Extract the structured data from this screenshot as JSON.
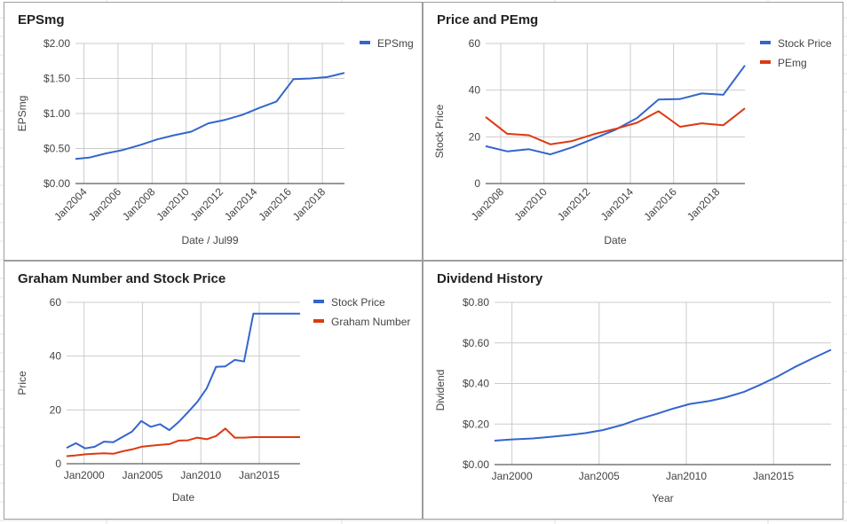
{
  "colors": {
    "blue": "#3366cc",
    "red": "#dc3912",
    "grid": "#cccccc",
    "axis": "#333333"
  },
  "chart_data": [
    {
      "type": "line",
      "title": "EPSmg",
      "xlabel": "Date / Jul99",
      "ylabel": "EPSmg",
      "ylim": [
        0,
        2
      ],
      "yticks": [
        "$0.00",
        "$0.50",
        "$1.00",
        "$1.50",
        "$2.00"
      ],
      "xlim": [
        2003.5,
        2019.3
      ],
      "xticks": [
        {
          "v": 2004,
          "t": "Jan2004"
        },
        {
          "v": 2006,
          "t": "Jan2006"
        },
        {
          "v": 2008,
          "t": "Jan2008"
        },
        {
          "v": 2010,
          "t": "Jan2010"
        },
        {
          "v": 2012,
          "t": "Jan2012"
        },
        {
          "v": 2014,
          "t": "Jan2014"
        },
        {
          "v": 2016,
          "t": "Jan2016"
        },
        {
          "v": 2018,
          "t": "Jan2018"
        }
      ],
      "legend_position": "right",
      "grid": true,
      "series": [
        {
          "name": "EPSmg",
          "color": "#3366cc",
          "x": [
            2003.5,
            2004.3,
            2005.3,
            2006.3,
            2007.3,
            2008.3,
            2009.3,
            2010.3,
            2011.3,
            2012.3,
            2013.3,
            2014.3,
            2015.3,
            2016.3,
            2017.3,
            2018.3,
            2019.3
          ],
          "y": [
            0.35,
            0.37,
            0.43,
            0.48,
            0.55,
            0.63,
            0.69,
            0.74,
            0.86,
            0.91,
            0.98,
            1.08,
            1.17,
            1.49,
            1.5,
            1.52,
            1.58
          ]
        }
      ]
    },
    {
      "type": "line",
      "title": "Price and PEmg",
      "xlabel": "Date",
      "ylabel": "Stock Price",
      "ylim": [
        0,
        60
      ],
      "yticks": [
        "0",
        "20",
        "40",
        "60"
      ],
      "xlim": [
        2007.3,
        2019.3
      ],
      "xticks": [
        {
          "v": 2008,
          "t": "Jan2008"
        },
        {
          "v": 2010,
          "t": "Jan2010"
        },
        {
          "v": 2012,
          "t": "Jan2012"
        },
        {
          "v": 2014,
          "t": "Jan2014"
        },
        {
          "v": 2016,
          "t": "Jan2016"
        },
        {
          "v": 2018,
          "t": "Jan2018"
        }
      ],
      "legend_position": "right",
      "grid": true,
      "series": [
        {
          "name": "Stock Price",
          "color": "#3366cc",
          "x": [
            2007.3,
            2008.3,
            2009.3,
            2010.3,
            2011.3,
            2012.3,
            2013.3,
            2014.3,
            2015.3,
            2016.3,
            2017.3,
            2018.3,
            2019.3
          ],
          "y": [
            16.0,
            13.8,
            14.7,
            12.5,
            15.5,
            19.2,
            23.0,
            28.0,
            36.0,
            36.2,
            38.6,
            38.0,
            50.6
          ]
        },
        {
          "name": "PEmg",
          "color": "#dc3912",
          "x": [
            2007.3,
            2008.3,
            2009.3,
            2010.3,
            2011.3,
            2012.3,
            2013.3,
            2014.3,
            2015.3,
            2016.3,
            2017.3,
            2018.3,
            2019.3
          ],
          "y": [
            28.5,
            21.3,
            20.7,
            16.8,
            18.2,
            21.1,
            23.4,
            26.0,
            31.0,
            24.3,
            25.8,
            25.0,
            32.2
          ]
        }
      ]
    },
    {
      "type": "line",
      "title": "Graham Number and Stock Price",
      "xlabel": "Date",
      "ylabel": "Price",
      "ylim": [
        0,
        60
      ],
      "yticks": [
        "0",
        "20",
        "40",
        "60"
      ],
      "xlim": [
        1998.5,
        2018.5
      ],
      "xticks": [
        {
          "v": 2000,
          "t": "Jan2000"
        },
        {
          "v": 2005,
          "t": "Jan2005"
        },
        {
          "v": 2010,
          "t": "Jan2010"
        },
        {
          "v": 2015,
          "t": "Jan2015"
        }
      ],
      "legend_position": "right",
      "grid": true,
      "series": [
        {
          "name": "Stock Price",
          "color": "#3366cc",
          "x": [
            1998.5,
            1999.3,
            2000.1,
            2000.9,
            2001.7,
            2002.5,
            2003.3,
            2004.1,
            2004.9,
            2005.7,
            2006.5,
            2007.3,
            2008.1,
            2008.9,
            2009.7,
            2010.5,
            2011.3,
            2012.1,
            2012.9,
            2013.7,
            2014.5,
            2015.3,
            2016.1,
            2016.9,
            2017.7,
            2018.5
          ],
          "y": [
            5.9,
            7.6,
            5.7,
            6.3,
            8.2,
            8.0,
            10.0,
            11.9,
            15.9,
            13.7,
            14.7,
            12.5,
            15.5,
            19.2,
            23.0,
            28.0,
            36.0,
            36.2,
            38.6,
            38.0,
            55.8,
            55.8,
            55.8,
            55.8,
            55.8,
            55.8
          ]
        },
        {
          "name": "Graham Number",
          "color": "#dc3912",
          "x": [
            1998.5,
            1999.3,
            2000.1,
            2000.9,
            2001.7,
            2002.5,
            2003.3,
            2004.1,
            2004.9,
            2005.7,
            2006.5,
            2007.3,
            2008.1,
            2008.9,
            2009.7,
            2010.5,
            2011.3,
            2012.1,
            2012.9,
            2013.7,
            2014.5,
            2015.3,
            2016.1,
            2016.9,
            2017.7,
            2018.5
          ],
          "y": [
            2.8,
            3.1,
            3.5,
            3.7,
            3.9,
            3.7,
            4.6,
            5.3,
            6.3,
            6.7,
            7.0,
            7.3,
            8.6,
            8.7,
            9.7,
            9.1,
            10.3,
            13.1,
            9.7,
            9.7,
            9.9,
            9.9,
            9.9,
            9.9,
            9.9,
            9.9
          ]
        }
      ]
    },
    {
      "type": "line",
      "title": "Dividend History",
      "xlabel": "Year",
      "ylabel": "Dividend",
      "ylim": [
        0,
        0.8
      ],
      "yticks": [
        "$0.00",
        "$0.20",
        "$0.40",
        "$0.60",
        "$0.80"
      ],
      "xlim": [
        1999,
        2018.3
      ],
      "xticks": [
        {
          "v": 2000,
          "t": "Jan2000"
        },
        {
          "v": 2005,
          "t": "Jan2005"
        },
        {
          "v": 2010,
          "t": "Jan2010"
        },
        {
          "v": 2015,
          "t": "Jan2015"
        }
      ],
      "legend_position": "none",
      "grid": true,
      "series": [
        {
          "name": "",
          "color": "#3366cc",
          "x": [
            1999,
            2000,
            2001.2,
            2002.2,
            2003.3,
            2004.2,
            2005.2,
            2006.3,
            2007.2,
            2008.3,
            2009.2,
            2010.2,
            2011.3,
            2012.2,
            2013.3,
            2014.2,
            2015.2,
            2016.2,
            2017.2,
            2018.3
          ],
          "y": [
            0.118,
            0.124,
            0.129,
            0.137,
            0.146,
            0.155,
            0.17,
            0.195,
            0.222,
            0.25,
            0.275,
            0.299,
            0.313,
            0.33,
            0.358,
            0.392,
            0.433,
            0.48,
            0.522,
            0.566
          ]
        }
      ]
    }
  ]
}
